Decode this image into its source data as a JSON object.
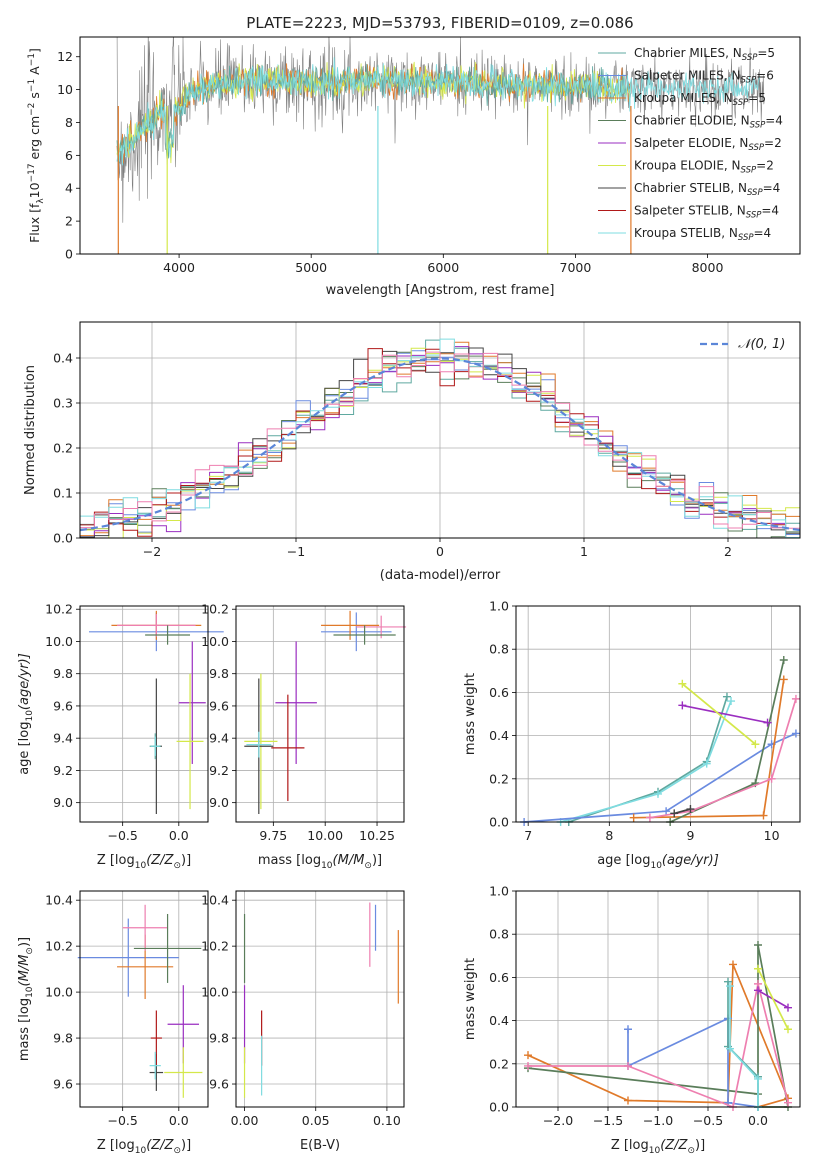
{
  "figure_title": "PLATE=2223, MJD=53793, FIBERID=0109, z=0.086",
  "series_colors": {
    "chabrier_miles": "#5fa9a0",
    "salpeter_miles": "#6a8be0",
    "kroupa_miles": "#e07a2a",
    "chabrier_elodie": "#5a7d5a",
    "salpeter_elodie": "#9a2ec0",
    "kroupa_elodie": "#d4e84a",
    "chabrier_stelib": "#444444",
    "salpeter_stelib": "#b01818",
    "kroupa_stelib": "#7fdce0",
    "pink": "#ee7fb0",
    "gaussian": "#5b86d8"
  },
  "chart_data": [
    {
      "id": "spectrum",
      "type": "line",
      "title": "PLATE=2223, MJD=53793, FIBERID=0109, z=0.086",
      "xlabel": "wavelength [Angstrom, rest frame]",
      "ylabel": "Flux [f_λ 10^-17 erg cm^-2 s^-1 A^-1]",
      "xlim": [
        3250,
        8700
      ],
      "ylim": [
        0,
        13.2
      ],
      "xticks": [
        4000,
        5000,
        6000,
        7000,
        8000
      ],
      "yticks": [
        0,
        2,
        4,
        6,
        8,
        10,
        12
      ],
      "legend_position": "top-right",
      "legend": [
        {
          "base": "Chabrier MILES, N",
          "sub": "SSP",
          "tail": "=5",
          "color": "#5fa9a0"
        },
        {
          "base": "Salpeter MILES, N",
          "sub": "SSP",
          "tail": "=6",
          "color": "#6a8be0"
        },
        {
          "base": "Kroupa MILES, N",
          "sub": "SSP",
          "tail": "=5",
          "color": "#e07a2a"
        },
        {
          "base": "Chabrier ELODIE, N",
          "sub": "SSP",
          "tail": "=4",
          "color": "#5a7d5a"
        },
        {
          "base": "Salpeter ELODIE, N",
          "sub": "SSP",
          "tail": "=2",
          "color": "#9a2ec0"
        },
        {
          "base": "Kroupa ELODIE, N",
          "sub": "SSP",
          "tail": "=2",
          "color": "#d4e84a"
        },
        {
          "base": "Chabrier STELIB, N",
          "sub": "SSP",
          "tail": "=4",
          "color": "#444444"
        },
        {
          "base": "Salpeter STELIB, N",
          "sub": "SSP",
          "tail": "=4",
          "color": "#b01818"
        },
        {
          "base": "Kroupa STELIB, N",
          "sub": "SSP",
          "tail": "=4",
          "color": "#7fdce0"
        }
      ],
      "continuum": {
        "x": [
          3550,
          3700,
          3850,
          4000,
          4100,
          4500,
          5000,
          5500,
          6000,
          6500,
          7000,
          7400
        ],
        "y": [
          6.2,
          7.4,
          8.6,
          8.9,
          9.9,
          10.6,
          10.4,
          10.6,
          10.5,
          10.3,
          10.2,
          10.1
        ]
      }
    },
    {
      "id": "residuals",
      "type": "bar",
      "xlabel": "(data-model)/error",
      "ylabel": "Normed distribution",
      "xlim": [
        -2.5,
        2.5
      ],
      "ylim": [
        0,
        0.48
      ],
      "xticks": [
        -2,
        -1,
        0,
        1,
        2
      ],
      "yticks": [
        0.0,
        0.1,
        0.2,
        0.3,
        0.4
      ],
      "grid": true,
      "legend_position": "top-right",
      "legend_label": "𝒩(0, 1)",
      "bin_width": 0.1
    },
    {
      "id": "age_vs_Z",
      "type": "scatter",
      "xlabel_base": "Z [log",
      "xlabel_sub": "10",
      "xlabel_tail": "(Z/Z",
      "ylabel": "age  [log10(age/yr)]",
      "xlim": [
        -0.88,
        0.26
      ],
      "ylim": [
        8.88,
        10.22
      ],
      "xticks": [
        -0.5,
        0.0
      ],
      "yticks": [
        9.0,
        9.2,
        9.4,
        9.6,
        9.8,
        10.0,
        10.2
      ],
      "grid": true,
      "points": [
        {
          "c": "#6a8be0",
          "x": -0.2,
          "y": 10.06,
          "xerr": 0.6,
          "yerr": 0.12
        },
        {
          "c": "#e07a2a",
          "x": -0.2,
          "y": 10.1,
          "xerr": 0.4,
          "yerr": 0.09
        },
        {
          "c": "#ee7fb0",
          "x": -0.2,
          "y": 10.1,
          "xerr": 0.35,
          "yerr": 0.07
        },
        {
          "c": "#5a7d5a",
          "x": -0.1,
          "y": 10.04,
          "xerr": 0.2,
          "yerr": 0.06
        },
        {
          "c": "#9a2ec0",
          "x": 0.12,
          "y": 9.62,
          "xerr": 0.12,
          "yerr": 0.38
        },
        {
          "c": "#d4e84a",
          "x": 0.1,
          "y": 9.38,
          "xerr": 0.12,
          "yerr": 0.42
        },
        {
          "c": "#444444",
          "x": -0.2,
          "y": 9.35,
          "xerr": 0.05,
          "yerr": 0.42
        },
        {
          "c": "#5fa9a0",
          "x": -0.21,
          "y": 9.35,
          "xerr": 0.05,
          "yerr": 0.08
        },
        {
          "c": "#7fdce0",
          "x": -0.21,
          "y": 9.35,
          "xerr": 0.04,
          "yerr": 0.06
        }
      ]
    },
    {
      "id": "age_vs_mass",
      "type": "scatter",
      "xlabel_base": "mass [log",
      "xlabel_sub": "10",
      "xlabel_tail": "(M/M",
      "ylabel": "",
      "xlim": [
        9.57,
        10.38
      ],
      "ylim": [
        8.88,
        10.22
      ],
      "xticks": [
        9.75,
        10.0,
        10.25
      ],
      "xticklabels": [
        "9.75",
        "10.00",
        "10.25"
      ],
      "yticks": [
        9.0,
        9.2,
        9.4,
        9.6,
        9.8,
        10.0,
        10.2
      ],
      "grid": true,
      "points": [
        {
          "c": "#6a8be0",
          "x": 10.15,
          "y": 10.06,
          "xerr": 0.17,
          "yerr": 0.12
        },
        {
          "c": "#e07a2a",
          "x": 10.12,
          "y": 10.1,
          "xerr": 0.14,
          "yerr": 0.09
        },
        {
          "c": "#ee7fb0",
          "x": 10.27,
          "y": 10.09,
          "xerr": 0.12,
          "yerr": 0.07
        },
        {
          "c": "#5a7d5a",
          "x": 10.19,
          "y": 10.04,
          "xerr": 0.15,
          "yerr": 0.06
        },
        {
          "c": "#9a2ec0",
          "x": 9.86,
          "y": 9.62,
          "xerr": 0.1,
          "yerr": 0.38
        },
        {
          "c": "#d4e84a",
          "x": 9.69,
          "y": 9.38,
          "xerr": 0.08,
          "yerr": 0.42
        },
        {
          "c": "#444444",
          "x": 9.68,
          "y": 9.35,
          "xerr": 0.07,
          "yerr": 0.42
        },
        {
          "c": "#b01818",
          "x": 9.82,
          "y": 9.34,
          "xerr": 0.08,
          "yerr": 0.33
        },
        {
          "c": "#7fdce0",
          "x": 9.68,
          "y": 9.36,
          "xerr": 0.06,
          "yerr": 0.08
        }
      ]
    },
    {
      "id": "weight_vs_age",
      "type": "line",
      "xlabel_base": "age  [log",
      "xlabel_sub": "10",
      "xlabel_tail": "(age/yr)]",
      "ylabel": "mass weight",
      "xlim": [
        6.85,
        10.35
      ],
      "ylim": [
        0,
        1.0
      ],
      "xticks": [
        7,
        8,
        9,
        10
      ],
      "yticks": [
        0.0,
        0.2,
        0.4,
        0.6,
        0.8,
        1.0
      ],
      "grid": true,
      "series": [
        {
          "c": "#5fa9a0",
          "x": [
            7.5,
            8.6,
            9.2,
            9.45
          ],
          "y": [
            0.0,
            0.14,
            0.28,
            0.58
          ]
        },
        {
          "c": "#7fdce0",
          "x": [
            7.4,
            8.6,
            9.2,
            9.5
          ],
          "y": [
            0.0,
            0.13,
            0.27,
            0.56
          ]
        },
        {
          "c": "#6a8be0",
          "x": [
            6.95,
            8.7,
            10.0,
            10.3
          ],
          "y": [
            0.0,
            0.05,
            0.36,
            0.41
          ]
        },
        {
          "c": "#e07a2a",
          "x": [
            8.3,
            9.9,
            10.15
          ],
          "y": [
            0.02,
            0.03,
            0.66
          ]
        },
        {
          "c": "#5a7d5a",
          "x": [
            8.75,
            9.8,
            10.15
          ],
          "y": [
            0.0,
            0.18,
            0.75
          ]
        },
        {
          "c": "#ee7fb0",
          "x": [
            8.5,
            9.0,
            10.0,
            10.3
          ],
          "y": [
            0.02,
            0.05,
            0.2,
            0.57
          ]
        },
        {
          "c": "#9a2ec0",
          "x": [
            8.9,
            9.95
          ],
          "y": [
            0.54,
            0.46
          ]
        },
        {
          "c": "#d4e84a",
          "x": [
            8.9,
            9.8
          ],
          "y": [
            0.64,
            0.36
          ]
        },
        {
          "c": "#444444",
          "x": [
            8.8,
            9.0
          ],
          "y": [
            0.04,
            0.06
          ]
        }
      ]
    },
    {
      "id": "mass_vs_Z",
      "type": "scatter",
      "xlabel_base": "Z [log",
      "xlabel_sub": "10",
      "xlabel_tail": "(Z/Z",
      "ylabel_base": "mass [log",
      "ylabel_sub": "10",
      "ylabel_tail": "(M/M",
      "xlim": [
        -0.88,
        0.26
      ],
      "ylim": [
        9.5,
        10.44
      ],
      "xticks": [
        -0.5,
        0.0
      ],
      "yticks": [
        9.6,
        9.8,
        10.0,
        10.2,
        10.4
      ],
      "grid": true,
      "points": [
        {
          "c": "#6a8be0",
          "x": -0.45,
          "y": 10.15,
          "xerr": 0.45,
          "yerr": 0.17
        },
        {
          "c": "#e07a2a",
          "x": -0.3,
          "y": 10.11,
          "xerr": 0.25,
          "yerr": 0.14
        },
        {
          "c": "#ee7fb0",
          "x": -0.3,
          "y": 10.28,
          "xerr": 0.2,
          "yerr": 0.1
        },
        {
          "c": "#5a7d5a",
          "x": -0.1,
          "y": 10.19,
          "xerr": 0.3,
          "yerr": 0.15
        },
        {
          "c": "#9a2ec0",
          "x": 0.04,
          "y": 9.86,
          "xerr": 0.14,
          "yerr": 0.17
        },
        {
          "c": "#d4e84a",
          "x": 0.04,
          "y": 9.65,
          "xerr": 0.17,
          "yerr": 0.11
        },
        {
          "c": "#444444",
          "x": -0.2,
          "y": 9.65,
          "xerr": 0.06,
          "yerr": 0.08
        },
        {
          "c": "#b01818",
          "x": -0.2,
          "y": 9.8,
          "xerr": 0.05,
          "yerr": 0.12
        },
        {
          "c": "#7fdce0",
          "x": -0.21,
          "y": 9.68,
          "xerr": 0.05,
          "yerr": 0.06
        }
      ]
    },
    {
      "id": "mass_vs_EBV",
      "type": "scatter",
      "xlabel": "E(B-V)",
      "xlim": [
        -0.006,
        0.112
      ],
      "ylim": [
        9.5,
        10.44
      ],
      "xticks": [
        0.0,
        0.05,
        0.1
      ],
      "xticklabels": [
        "0.00",
        "0.05",
        "0.10"
      ],
      "yticks": [
        9.6,
        9.8,
        10.0,
        10.2,
        10.4
      ],
      "grid": true,
      "points": [
        {
          "c": "#5a7d5a",
          "x": 0.0,
          "y": 10.19,
          "xerr": 0,
          "yerr": 0.15
        },
        {
          "c": "#9a2ec0",
          "x": 0.0,
          "y": 9.86,
          "xerr": 0,
          "yerr": 0.17
        },
        {
          "c": "#d4e84a",
          "x": 0.0,
          "y": 9.65,
          "xerr": 0,
          "yerr": 0.11
        },
        {
          "c": "#b01818",
          "x": 0.012,
          "y": 9.8,
          "xerr": 0,
          "yerr": 0.12
        },
        {
          "c": "#7fdce0",
          "x": 0.012,
          "y": 9.68,
          "xerr": 0,
          "yerr": 0.13
        },
        {
          "c": "#ee7fb0",
          "x": 0.088,
          "y": 10.25,
          "xerr": 0,
          "yerr": 0.14
        },
        {
          "c": "#6a8be0",
          "x": 0.092,
          "y": 10.28,
          "xerr": 0,
          "yerr": 0.1
        },
        {
          "c": "#e07a2a",
          "x": 0.108,
          "y": 10.11,
          "xerr": 0,
          "yerr": 0.16
        }
      ]
    },
    {
      "id": "weight_vs_Z",
      "type": "line",
      "xlabel_base": "Z [log",
      "xlabel_sub": "10",
      "xlabel_tail": "(Z/Z",
      "ylabel": "mass weight",
      "xlim": [
        -2.42,
        0.42
      ],
      "ylim": [
        0,
        1.0
      ],
      "xticks": [
        -2.0,
        -1.5,
        -1.0,
        -0.5,
        0.0
      ],
      "yticks": [
        0.0,
        0.2,
        0.4,
        0.6,
        0.8,
        1.0
      ],
      "grid": true,
      "series": [
        {
          "c": "#e07a2a",
          "x": [
            -2.3,
            -1.3,
            -0.3,
            -0.25,
            0.3,
            0.0
          ],
          "y": [
            0.24,
            0.03,
            0.02,
            0.66,
            0.04,
            0.0
          ]
        },
        {
          "c": "#5a7d5a",
          "x": [
            -2.3,
            0.0,
            0.0,
            0.3,
            0.0
          ],
          "y": [
            0.18,
            0.06,
            0.75,
            0.0,
            0.0
          ]
        },
        {
          "c": "#6a8be0",
          "x": [
            -1.3,
            -1.3,
            -0.3,
            -0.3,
            0.0
          ],
          "y": [
            0.36,
            0.19,
            0.41,
            0.02,
            0.0
          ]
        },
        {
          "c": "#ee7fb0",
          "x": [
            -2.3,
            -1.3,
            -0.25,
            0.0,
            0.3
          ],
          "y": [
            0.19,
            0.19,
            0.0,
            0.57,
            0.02
          ]
        },
        {
          "c": "#5fa9a0",
          "x": [
            -0.3,
            -0.3,
            0.0,
            0.0
          ],
          "y": [
            0.58,
            0.28,
            0.14,
            0.0
          ]
        },
        {
          "c": "#7fdce0",
          "x": [
            -0.28,
            -0.28,
            0.0,
            0.0
          ],
          "y": [
            0.56,
            0.27,
            0.13,
            0.0
          ]
        },
        {
          "c": "#9a2ec0",
          "x": [
            0.0,
            0.3
          ],
          "y": [
            0.54,
            0.46
          ]
        },
        {
          "c": "#d4e84a",
          "x": [
            0.0,
            0.3
          ],
          "y": [
            0.64,
            0.36
          ]
        }
      ]
    }
  ]
}
